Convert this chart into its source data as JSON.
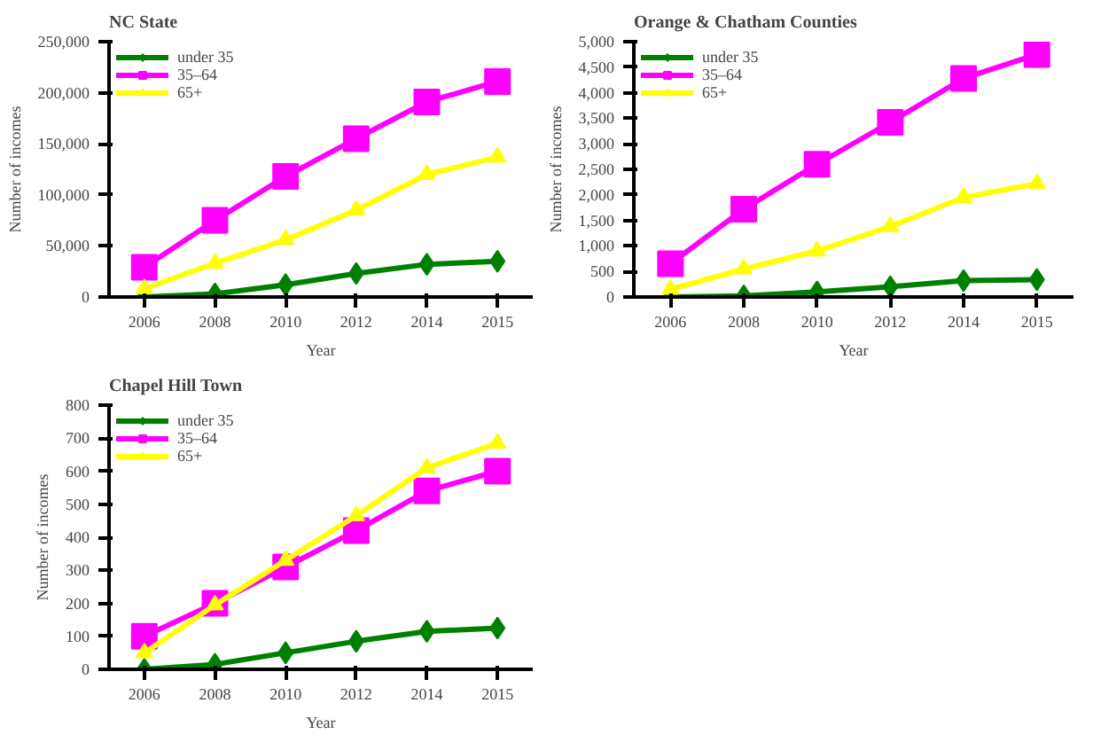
{
  "chart_data": [
    {
      "type": "line",
      "title": "NC State",
      "xlabel": "Year",
      "ylabel": "Number of incomes",
      "categories": [
        "2006",
        "2008",
        "2010",
        "2012",
        "2014",
        "2015"
      ],
      "ylim": [
        0,
        250000
      ],
      "yticks": [
        0,
        {
          "value": 50000,
          "label": "50,000"
        },
        {
          "value": 100000,
          "label": "100,000"
        },
        {
          "value": 150000,
          "label": "150,000"
        },
        {
          "value": 200000,
          "label": "200,000"
        },
        {
          "value": 250000,
          "label": "250,000"
        }
      ],
      "grid": false,
      "legend": "top left",
      "series": [
        {
          "name": "under 35",
          "color": "#008000",
          "marker": "diamond",
          "values": [
            0,
            3000,
            12000,
            23000,
            32000,
            35000
          ]
        },
        {
          "name": "35–64",
          "color": "#ff00ff",
          "marker": "square",
          "values": [
            29000,
            75000,
            118000,
            155000,
            191000,
            211000
          ]
        },
        {
          "name": "65+",
          "color": "#ffff00",
          "marker": "triangle",
          "values": [
            8000,
            33000,
            56000,
            85000,
            120000,
            137000
          ]
        }
      ]
    },
    {
      "type": "line",
      "title": "Orange & Chatham Counties",
      "xlabel": "Year",
      "ylabel": "Number of incomes",
      "categories": [
        "2006",
        "2008",
        "2010",
        "2012",
        "2014",
        "2015"
      ],
      "ylim": [
        0,
        5000
      ],
      "yticks": [
        0,
        500,
        {
          "value": 1000,
          "label": "1,000"
        },
        {
          "value": 1500,
          "label": "1,500"
        },
        {
          "value": 2000,
          "label": "2,000"
        },
        {
          "value": 2500,
          "label": "2,500"
        },
        {
          "value": 3000,
          "label": "3,000"
        },
        {
          "value": 3500,
          "label": "3,500"
        },
        {
          "value": 4000,
          "label": "4,000"
        },
        {
          "value": 4500,
          "label": "4,500"
        },
        {
          "value": 5000,
          "label": "5,000"
        }
      ],
      "grid": false,
      "legend": "top left",
      "series": [
        {
          "name": "under 35",
          "color": "#008000",
          "marker": "diamond",
          "values": [
            0,
            20,
            100,
            200,
            320,
            340
          ]
        },
        {
          "name": "35–64",
          "color": "#ff00ff",
          "marker": "square",
          "values": [
            650,
            1720,
            2600,
            3420,
            4280,
            4750
          ]
        },
        {
          "name": "65+",
          "color": "#ffff00",
          "marker": "triangle",
          "values": [
            150,
            550,
            900,
            1380,
            1950,
            2220
          ]
        }
      ]
    },
    {
      "type": "line",
      "title": "Chapel Hill Town",
      "xlabel": "Year",
      "ylabel": "Number of incomes",
      "categories": [
        "2006",
        "2008",
        "2010",
        "2012",
        "2014",
        "2015"
      ],
      "ylim": [
        0,
        800
      ],
      "yticks": [
        0,
        100,
        200,
        300,
        400,
        500,
        600,
        700,
        800
      ],
      "grid": false,
      "legend": "top left",
      "series": [
        {
          "name": "under 35",
          "color": "#008000",
          "marker": "diamond",
          "values": [
            0,
            15,
            50,
            85,
            115,
            125
          ]
        },
        {
          "name": "35–64",
          "color": "#ff00ff",
          "marker": "square",
          "values": [
            100,
            200,
            310,
            420,
            540,
            600
          ]
        },
        {
          "name": "65+",
          "color": "#ffff00",
          "marker": "triangle",
          "values": [
            50,
            195,
            330,
            465,
            610,
            685
          ]
        }
      ]
    }
  ]
}
